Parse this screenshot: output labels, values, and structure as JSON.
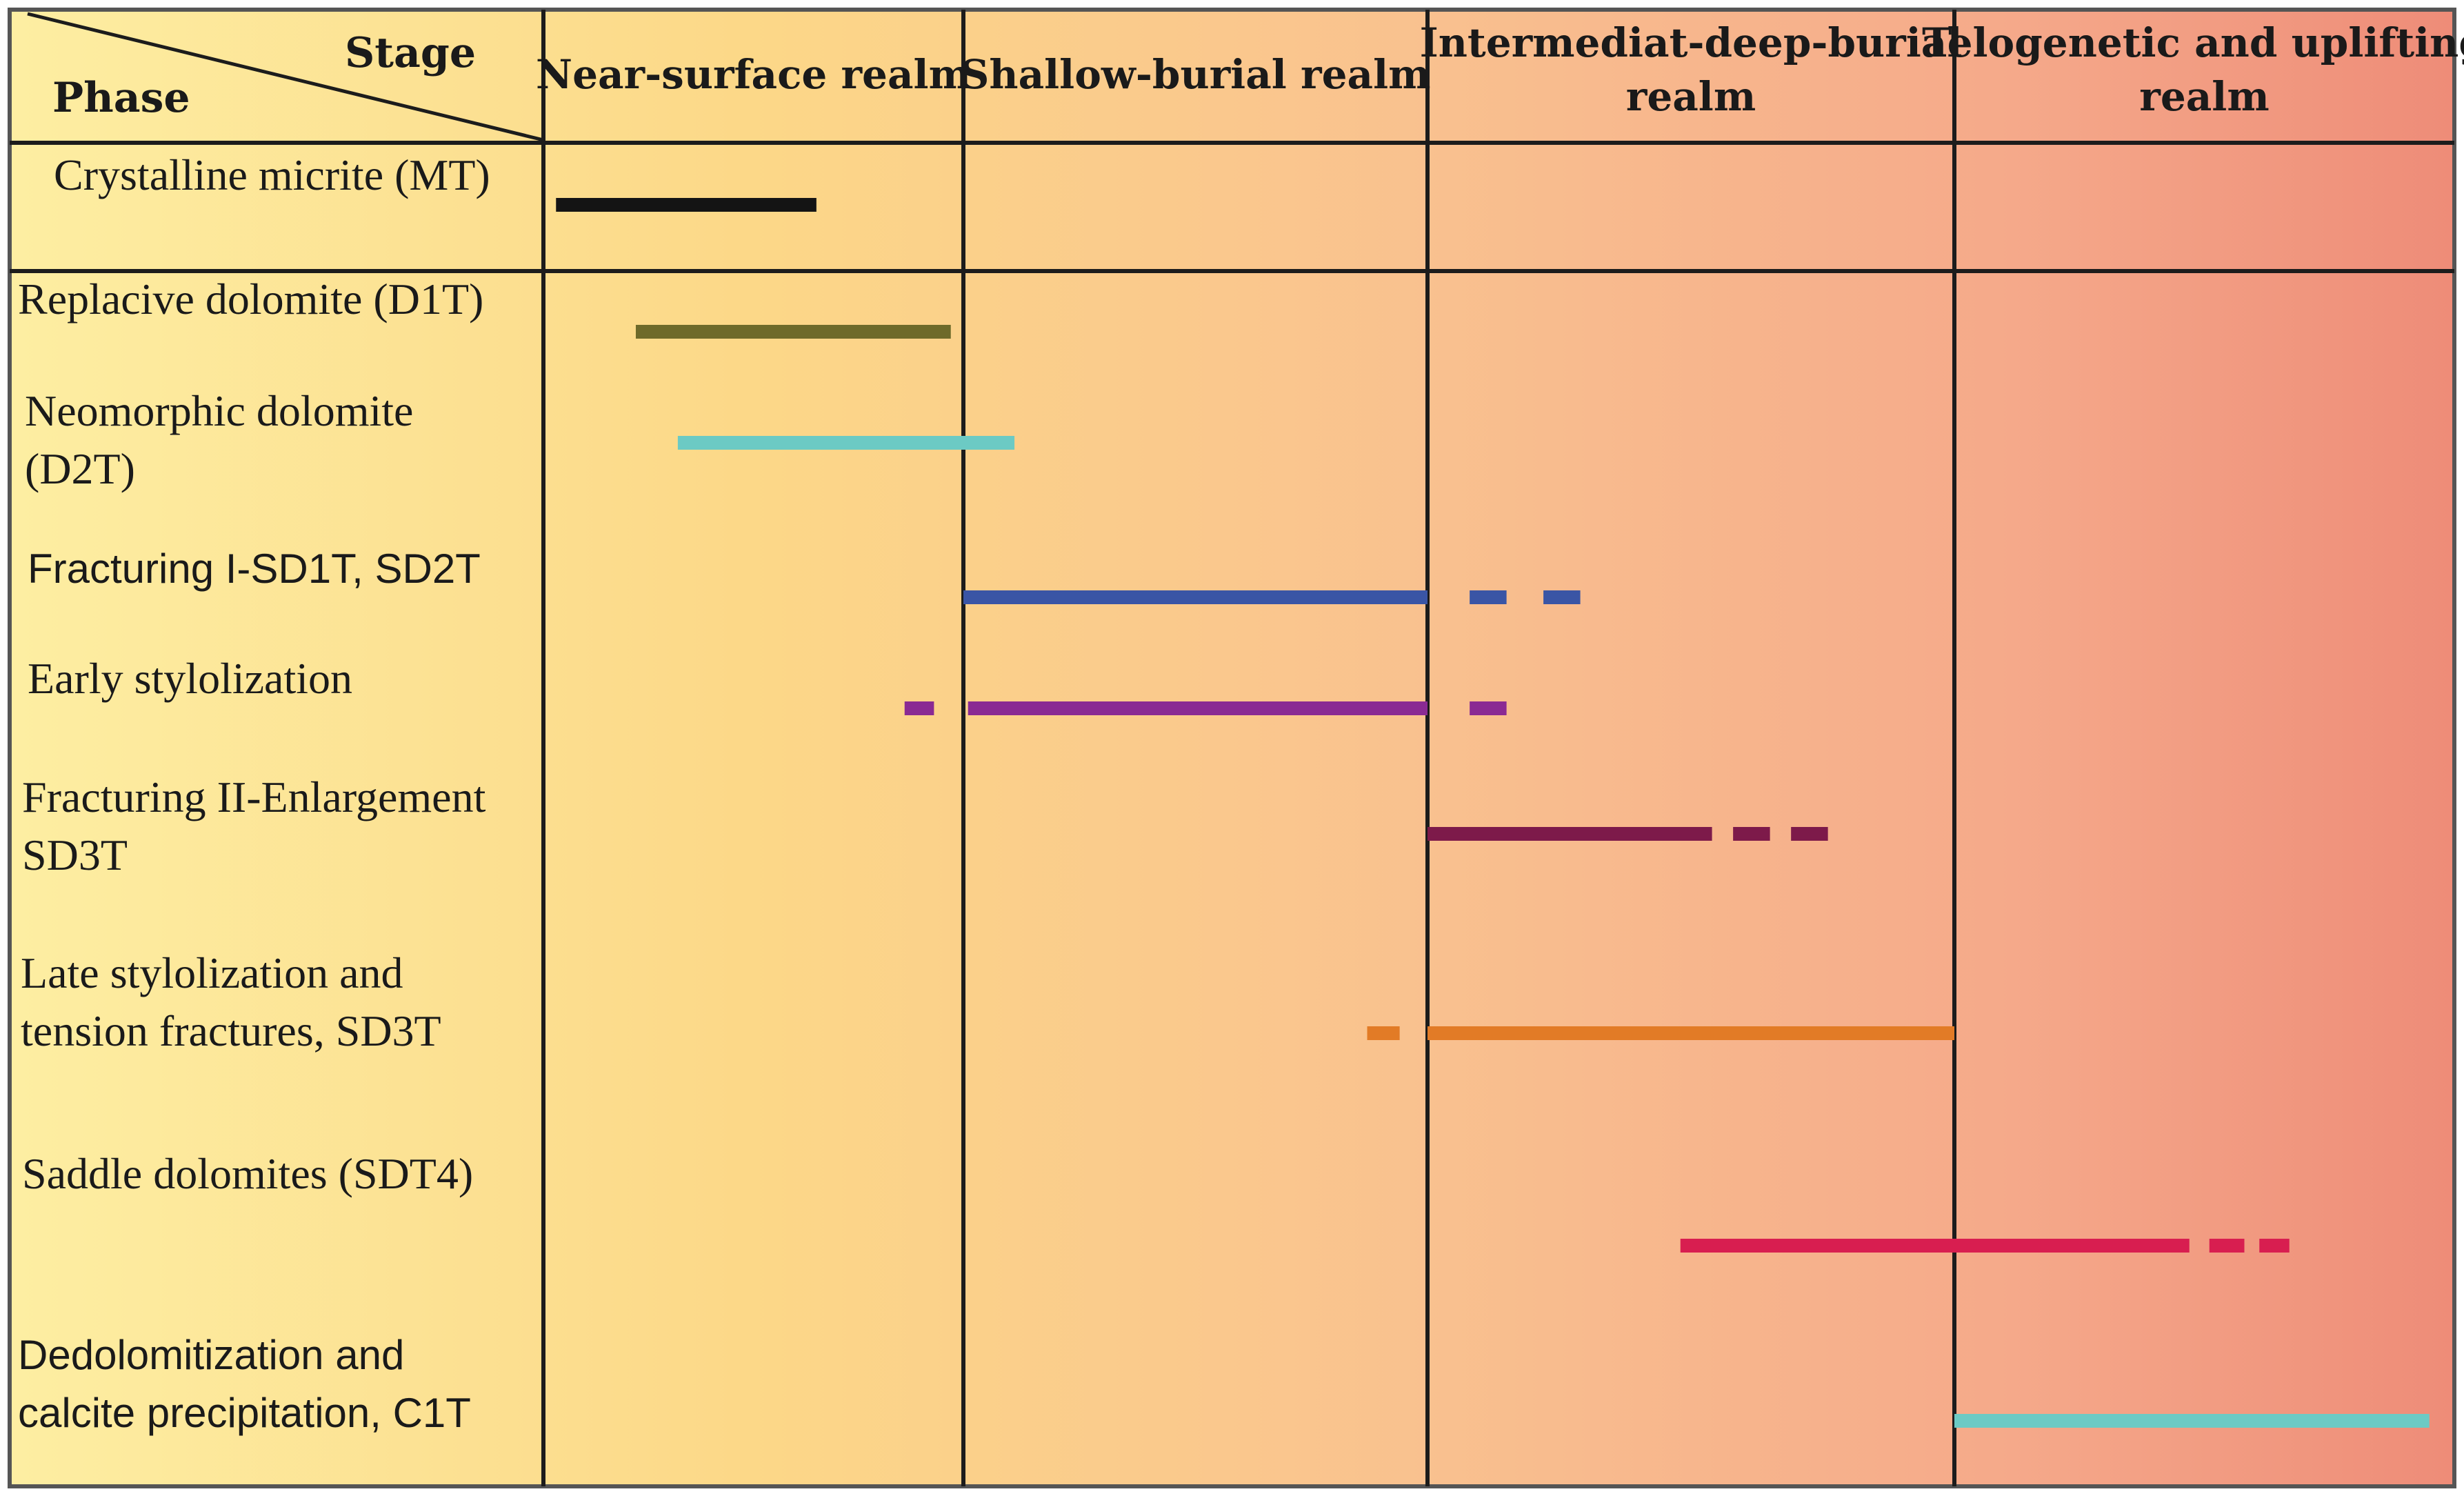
{
  "corner": {
    "stage_label": "Stage",
    "phase_label": "Phase"
  },
  "stages": [
    {
      "id": "near-surface",
      "lines": [
        "Near-surface realm"
      ]
    },
    {
      "id": "shallow-burial",
      "lines": [
        "Shallow-burial realm"
      ]
    },
    {
      "id": "intermediate-deep-burial",
      "lines": [
        "Intermediat-deep-burial",
        "realm"
      ]
    },
    {
      "id": "telogenetic-uplifting",
      "lines": [
        "Telogenetic and uplifting",
        "realm"
      ]
    }
  ],
  "colors": {
    "background_gradient": [
      "#fdeea2",
      "#fcd888",
      "#f9c18f",
      "#f5a98a",
      "#ee8c78"
    ],
    "grid_line": "#1c1c1c"
  },
  "phases": [
    {
      "id": "crystalline-micrite",
      "lines": [
        "Crystalline micrite (MT)"
      ],
      "font": "serif",
      "color": "#141414",
      "solid": [
        [
          0.03,
          0.65
        ]
      ],
      "dashes": []
    },
    {
      "id": "replacive-dolomite",
      "lines": [
        "Replacive dolomite (D1T)"
      ],
      "font": "serif",
      "color": "#6e6a2a",
      "solid": [
        [
          0.22,
          0.97
        ]
      ],
      "dashes": []
    },
    {
      "id": "neomorphic-dolomite",
      "lines": [
        "Neomorphic dolomite",
        "(D2T)"
      ],
      "font": "serif",
      "color": "#6ccac4",
      "solid": [
        [
          0.32,
          1.11
        ]
      ],
      "dashes": []
    },
    {
      "id": "fracturing-1",
      "lines": [
        "Fracturing I-SD1T, SD2T"
      ],
      "font": "sans",
      "color": "#3a55a5",
      "solid": [
        [
          1.0,
          2.0
        ]
      ],
      "dashes": [
        [
          2.08,
          2.15
        ],
        [
          2.22,
          2.29
        ]
      ]
    },
    {
      "id": "early-stylolization",
      "lines": [
        "Early stylolization"
      ],
      "font": "serif",
      "color": "#8a2a93",
      "solid": [
        [
          1.01,
          2.0
        ]
      ],
      "dashes": [
        [
          0.86,
          0.93
        ],
        [
          2.08,
          2.15
        ]
      ]
    },
    {
      "id": "fracturing-2",
      "lines": [
        "Fracturing II-Enlargement",
        "SD3T"
      ],
      "font": "serif",
      "color": "#7d1a4a",
      "solid": [
        [
          2.0,
          2.54
        ]
      ],
      "dashes": [
        [
          2.58,
          2.65
        ],
        [
          2.69,
          2.76
        ]
      ]
    },
    {
      "id": "late-stylolization",
      "lines": [
        "Late stylolization and",
        "tension fractures, SD3T"
      ],
      "font": "serif",
      "color": "#e27b26",
      "solid": [
        [
          2.0,
          3.0
        ]
      ],
      "dashes": [
        [
          1.87,
          1.94
        ]
      ]
    },
    {
      "id": "saddle-dolomites",
      "lines": [
        "Saddle dolomites (SDT4)"
      ],
      "font": "serif",
      "color": "#d81e50",
      "solid": [
        [
          2.48,
          3.47
        ]
      ],
      "dashes": [
        [
          3.51,
          3.58
        ],
        [
          3.61,
          3.67
        ]
      ]
    },
    {
      "id": "dedolomitization",
      "lines": [
        "Dedolomitization and",
        "calcite precipitation, C1T"
      ],
      "font": "sans",
      "color": "#6ccac4",
      "solid": [
        [
          3.0,
          3.95
        ]
      ],
      "dashes": []
    }
  ]
}
